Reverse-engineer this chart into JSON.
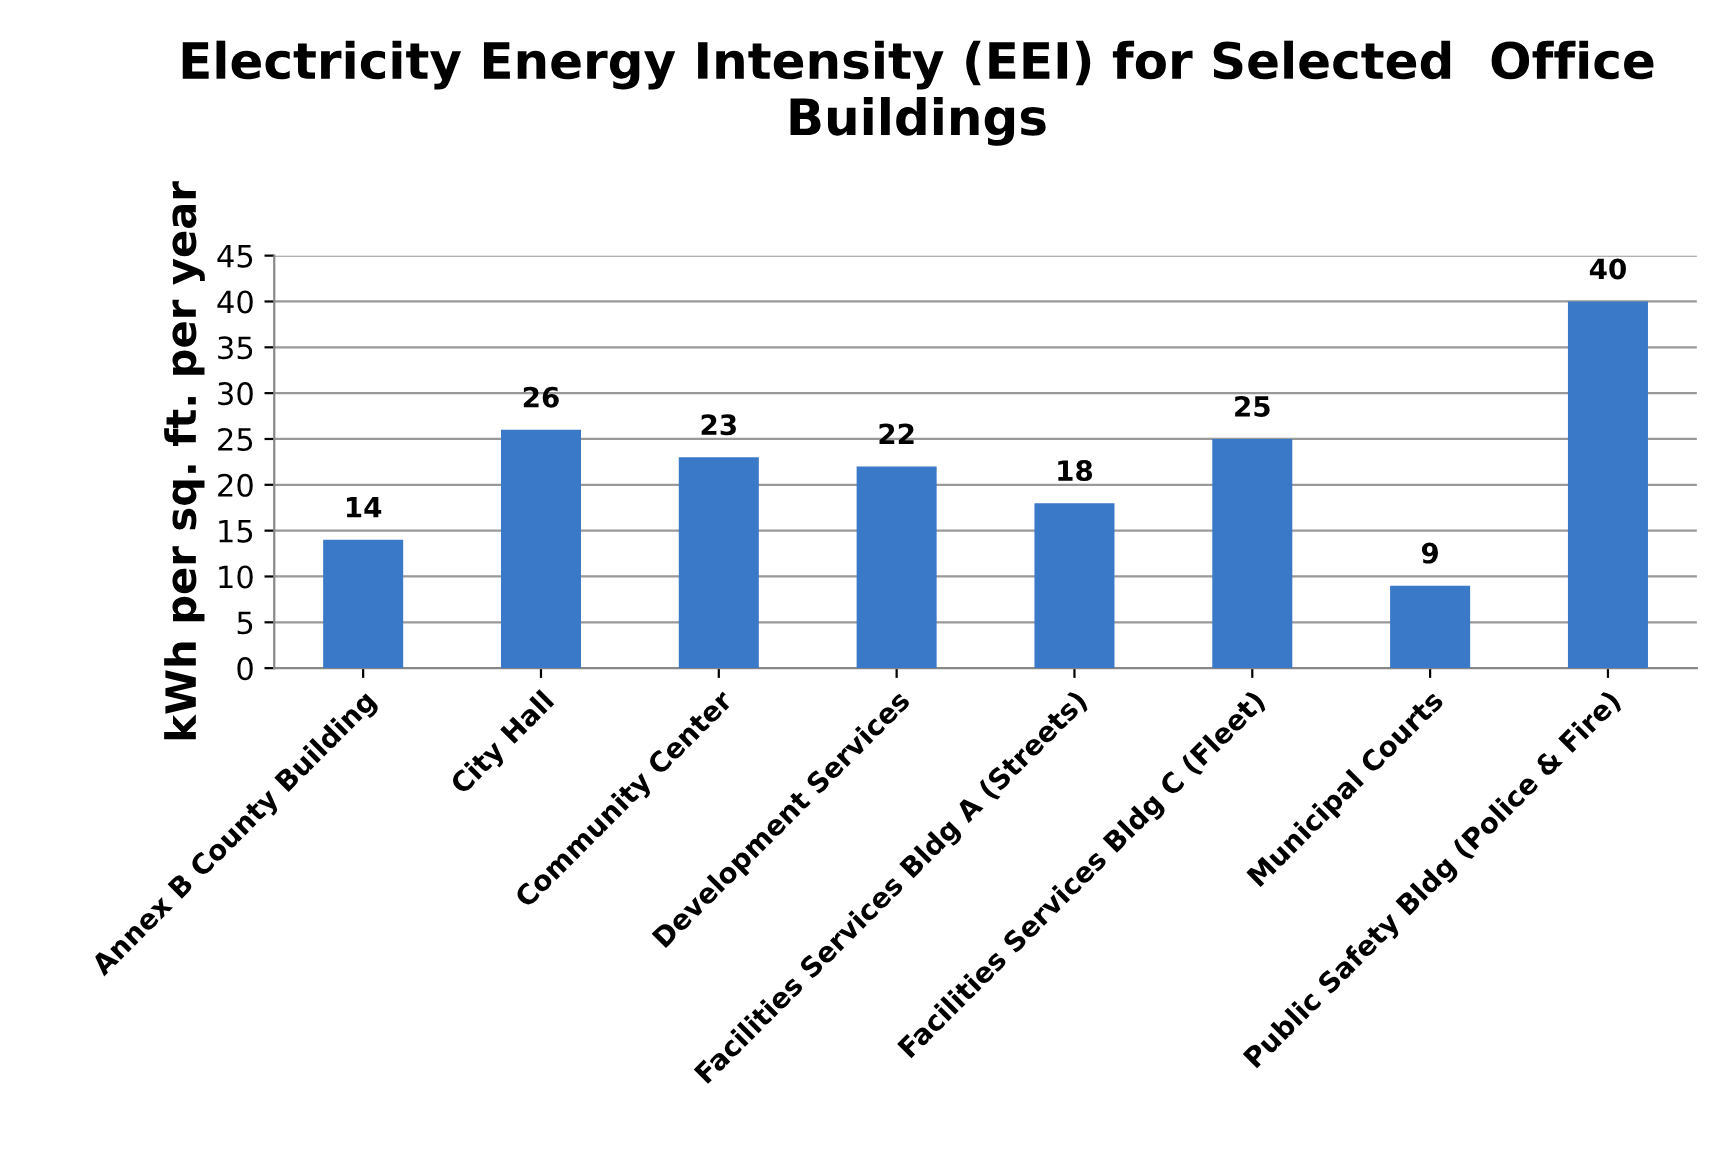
{
  "chart_data": {
    "type": "bar",
    "title": "Electricity Energy Intensity (EEI) for Selected  Office\nBuildings",
    "ylabel": "kWh per sq. ft. per year",
    "categories": [
      "Annex B County Building",
      "City Hall",
      "Community Center",
      "Development Services",
      "Facilities Services Bldg A (Streets)",
      "Facilities Services Bldg C (Fleet)",
      "Municipal Courts",
      "Public Safety Bldg (Police & Fire)"
    ],
    "values": [
      14,
      26,
      23,
      22,
      18,
      25,
      9,
      40
    ],
    "color": "#3a78c8",
    "ylim": [
      0,
      45
    ],
    "yticks": [
      0,
      5,
      10,
      15,
      20,
      25,
      30,
      35,
      40,
      45
    ],
    "grid": "y",
    "data_labels": true
  }
}
